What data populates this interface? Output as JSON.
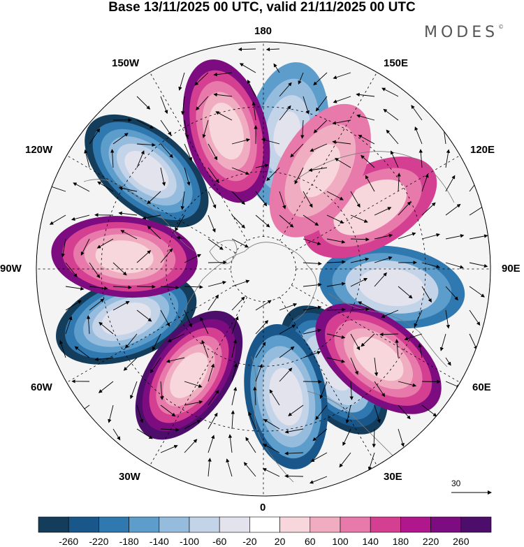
{
  "title": "Base 13/11/2025 00 UTC, valid 21/11/2025 00 UTC",
  "brand": "MODES",
  "brand_mark": "©",
  "projection": "north polar stereographic",
  "longitude_labels": {
    "top": "180",
    "bottom": "0",
    "left": "90W",
    "right": "90E",
    "upper_left": "150W",
    "upper_right": "150E",
    "left_upper": "120W",
    "right_upper": "120E",
    "left_lower": "60W",
    "right_lower": "60E",
    "lower_left": "30W",
    "lower_right": "30E"
  },
  "vector_scale": {
    "value": "30",
    "icon": "arrow-right-icon"
  },
  "colorbar": {
    "ticks": [
      "-260",
      "-220",
      "-180",
      "-140",
      "-100",
      "-60",
      "-20",
      "20",
      "60",
      "100",
      "140",
      "180",
      "220",
      "260"
    ],
    "colors": [
      "#143d5c",
      "#19568a",
      "#2f78b0",
      "#5c9dcc",
      "#95bbdd",
      "#c3d3e8",
      "#e3e3ee",
      "#ffffff",
      "#f8d7dc",
      "#f0acc0",
      "#e879ab",
      "#d53f92",
      "#b0178d",
      "#7c0c7f",
      "#4d0d6a"
    ]
  },
  "anomaly_cells": [
    {
      "lon": 35,
      "lat": 52,
      "value": -280,
      "sign": "negative"
    },
    {
      "lon": 10,
      "lat": 50,
      "value": -220,
      "sign": "negative"
    },
    {
      "lon": -70,
      "lat": 45,
      "value": -240,
      "sign": "negative"
    },
    {
      "lon": -130,
      "lat": 43,
      "value": -240,
      "sign": "negative"
    },
    {
      "lon": 170,
      "lat": 48,
      "value": -150,
      "sign": "negative"
    },
    {
      "lon": 82,
      "lat": 50,
      "value": -190,
      "sign": "negative"
    },
    {
      "lon": -35,
      "lat": 50,
      "value": 270,
      "sign": "positive"
    },
    {
      "lon": -95,
      "lat": 47,
      "value": 210,
      "sign": "positive"
    },
    {
      "lon": -165,
      "lat": 46,
      "value": 200,
      "sign": "positive"
    },
    {
      "lon": 120,
      "lat": 52,
      "value": 140,
      "sign": "positive"
    },
    {
      "lon": 52,
      "lat": 45,
      "value": 210,
      "sign": "positive"
    },
    {
      "lon": 150,
      "lat": 55,
      "value": 90,
      "sign": "positive"
    }
  ]
}
